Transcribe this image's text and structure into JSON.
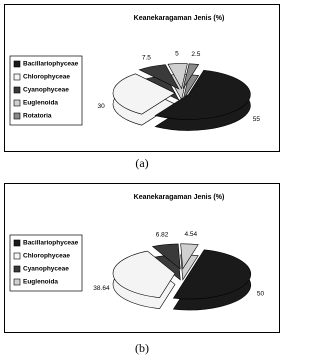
{
  "chart_data": [
    {
      "type": "pie",
      "title": "Keanekaragaman Jenis (%)",
      "categories": [
        "Bacillariophyceae",
        "Chlorophyceae",
        "Cyanophyceae",
        "Euglenoida",
        "Rotatoria"
      ],
      "values": [
        55,
        30,
        7.5,
        5,
        2.5
      ],
      "colors": [
        "#1a1a1a",
        "#f4f4f4",
        "#3a3a3a",
        "#d0d0d0",
        "#8a8a8a"
      ],
      "caption": "(a)"
    },
    {
      "type": "pie",
      "title": "Keanekaragaman Jenis (%)",
      "categories": [
        "Bacillariophyceae",
        "Chlorophyceae",
        "Cyanophyceae",
        "Euglenoida"
      ],
      "values": [
        50,
        38.64,
        6.82,
        4.54
      ],
      "colors": [
        "#1a1a1a",
        "#f4f4f4",
        "#3a3a3a",
        "#d0d0d0"
      ],
      "caption": "(b)"
    }
  ]
}
